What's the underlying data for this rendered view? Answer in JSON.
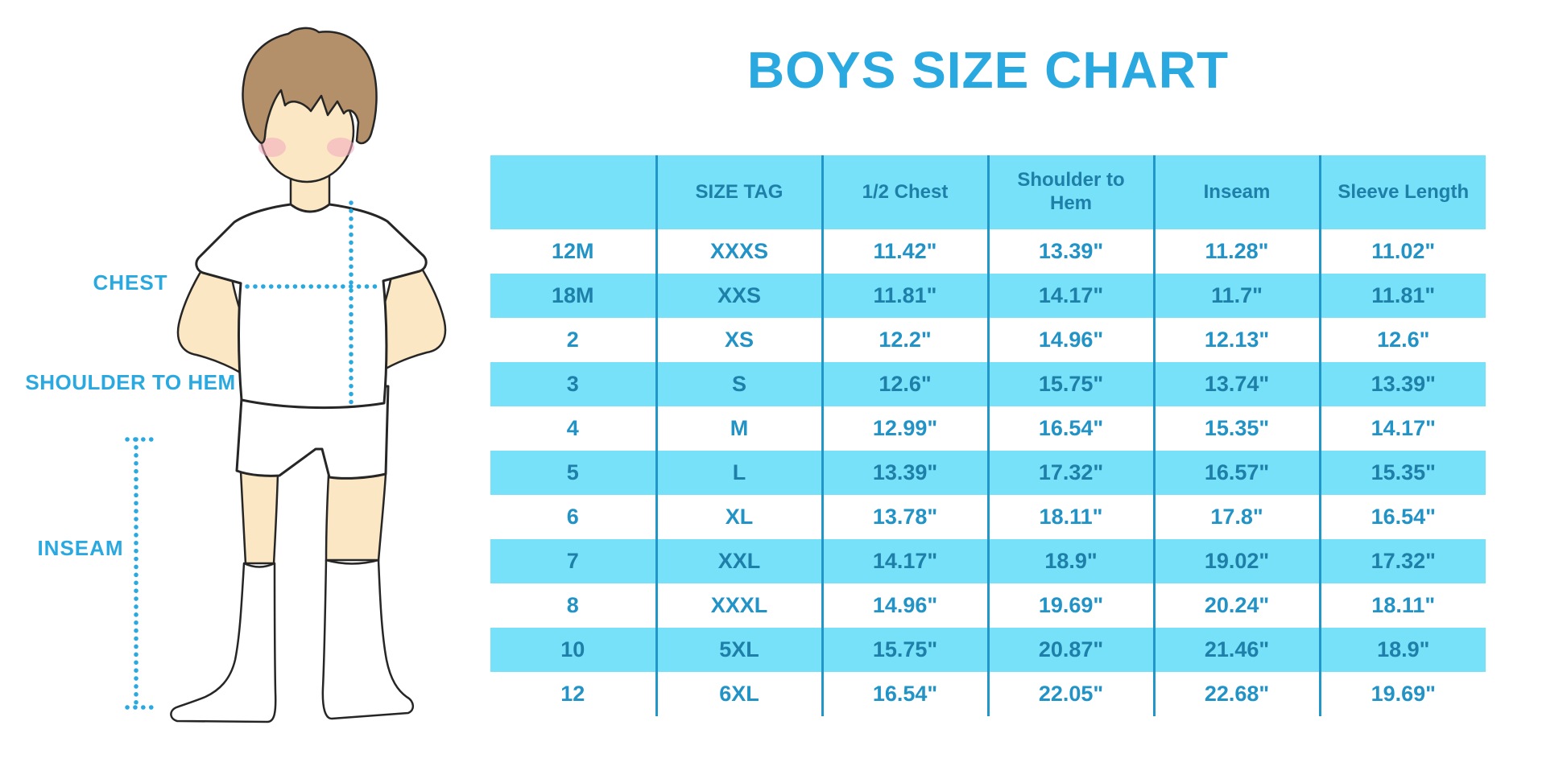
{
  "title": "BOYS SIZE CHART",
  "figure_labels": {
    "chest": "CHEST",
    "shoulder_to_hem": "SHOULDER TO HEM",
    "inseam": "INSEAM"
  },
  "colors": {
    "accent_blue": "#29A9E0",
    "table_fill_blue": "#76E1F9",
    "column_divider_blue": "#2196C9",
    "header_text_blue": "#1E7FA8",
    "body_text_blue": "#2193C6",
    "skin": "#FBE7C3",
    "hair": "#B3906A",
    "blush": "#F2A9C0"
  },
  "chart_data": {
    "type": "table",
    "title": "BOYS SIZE CHART",
    "columns": [
      "",
      "SIZE TAG",
      "1/2 Chest",
      "Shoulder to Hem",
      "Inseam",
      "Sleeve Length"
    ],
    "rows": [
      [
        "12M",
        "XXXS",
        "11.42\"",
        "13.39\"",
        "11.28\"",
        "11.02\""
      ],
      [
        "18M",
        "XXS",
        "11.81\"",
        "14.17\"",
        "11.7\"",
        "11.81\""
      ],
      [
        "2",
        "XS",
        "12.2\"",
        "14.96\"",
        "12.13\"",
        "12.6\""
      ],
      [
        "3",
        "S",
        "12.6\"",
        "15.75\"",
        "13.74\"",
        "13.39\""
      ],
      [
        "4",
        "M",
        "12.99\"",
        "16.54\"",
        "15.35\"",
        "14.17\""
      ],
      [
        "5",
        "L",
        "13.39\"",
        "17.32\"",
        "16.57\"",
        "15.35\""
      ],
      [
        "6",
        "XL",
        "13.78\"",
        "18.11\"",
        "17.8\"",
        "16.54\""
      ],
      [
        "7",
        "XXL",
        "14.17\"",
        "18.9\"",
        "19.02\"",
        "17.32\""
      ],
      [
        "8",
        "XXXL",
        "14.96\"",
        "19.69\"",
        "20.24\"",
        "18.11\""
      ],
      [
        "10",
        "5XL",
        "15.75\"",
        "20.87\"",
        "21.46\"",
        "18.9\""
      ],
      [
        "12",
        "6XL",
        "16.54\"",
        "22.05\"",
        "22.68\"",
        "19.69\""
      ]
    ],
    "row_striping": "alternating white and light blue, starting white",
    "units": "inches"
  }
}
